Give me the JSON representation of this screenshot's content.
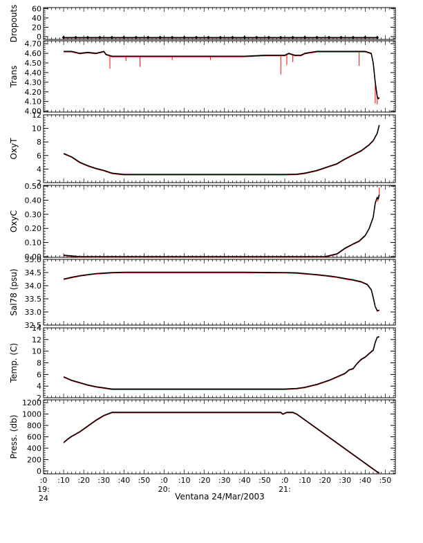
{
  "xlabel": "Ventana 24/Mar/2003",
  "x_ticks": [
    {
      "minute": 0,
      "label": ":0",
      "sub1": "19:",
      "sub2": "24"
    },
    {
      "minute": 10,
      "label": ":10"
    },
    {
      "minute": 20,
      "label": ":20"
    },
    {
      "minute": 30,
      "label": ":30"
    },
    {
      "minute": 40,
      "label": ":40"
    },
    {
      "minute": 50,
      "label": ":50"
    },
    {
      "minute": 60,
      "label": ":0",
      "sub1": "20:"
    },
    {
      "minute": 70,
      "label": ":10"
    },
    {
      "minute": 80,
      "label": ":20"
    },
    {
      "minute": 90,
      "label": ":30"
    },
    {
      "minute": 100,
      "label": ":40"
    },
    {
      "minute": 110,
      "label": ":50"
    },
    {
      "minute": 120,
      "label": ":0",
      "sub1": "21:"
    },
    {
      "minute": 130,
      "label": ":10"
    },
    {
      "minute": 140,
      "label": ":20"
    },
    {
      "minute": 150,
      "label": ":30"
    },
    {
      "minute": 160,
      "label": ":40"
    },
    {
      "minute": 170,
      "label": ":50"
    }
  ],
  "colors": {
    "raw": "#ff0000",
    "smoothed": "#000000",
    "axis": "#000000"
  },
  "chart_data": [
    {
      "type": "line",
      "id": "dropouts",
      "ylabel": "Dropouts",
      "ylim": [
        -6,
        62
      ],
      "yticks": [
        0,
        20,
        40,
        60
      ],
      "ytick_labels": [
        "0",
        "20",
        "40",
        "60"
      ],
      "series": [
        {
          "x": [
            10,
            166
          ],
          "y": [
            -2,
            -2
          ]
        }
      ],
      "markers": {
        "from": 10,
        "to": 166,
        "step": 6,
        "y": -2
      }
    },
    {
      "type": "line",
      "id": "trans",
      "ylabel": "Trans",
      "ylim": [
        3.99,
        4.73
      ],
      "yticks": [
        4.0,
        4.1,
        4.2,
        4.3,
        4.4,
        4.5,
        4.6,
        4.7
      ],
      "ytick_labels": [
        "4.00",
        "4.10",
        "4.20",
        "4.30",
        "4.40",
        "4.50",
        "4.60",
        "4.70"
      ],
      "series": [
        {
          "x": [
            10,
            14,
            18,
            22,
            26,
            30,
            31,
            34,
            40,
            60,
            80,
            100,
            110,
            118,
            120,
            122,
            125,
            128,
            130,
            136,
            150,
            160,
            163,
            164,
            165,
            166,
            166.5,
            167
          ],
          "y": [
            4.62,
            4.62,
            4.6,
            4.61,
            4.6,
            4.62,
            4.59,
            4.57,
            4.57,
            4.57,
            4.57,
            4.57,
            4.58,
            4.58,
            4.58,
            4.6,
            4.58,
            4.58,
            4.6,
            4.62,
            4.62,
            4.62,
            4.6,
            4.5,
            4.3,
            4.15,
            4.13,
            4.14
          ]
        }
      ],
      "spikes": [
        {
          "x": 33,
          "y": 4.44
        },
        {
          "x": 48,
          "y": 4.46
        },
        {
          "x": 41,
          "y": 4.52
        },
        {
          "x": 64,
          "y": 4.53
        },
        {
          "x": 83,
          "y": 4.53
        },
        {
          "x": 118,
          "y": 4.38
        },
        {
          "x": 121,
          "y": 4.48
        },
        {
          "x": 124,
          "y": 4.51
        },
        {
          "x": 157,
          "y": 4.47
        },
        {
          "x": 165,
          "y": 4.08
        },
        {
          "x": 166,
          "y": 4.07
        }
      ]
    },
    {
      "type": "line",
      "id": "oxyt",
      "ylabel": "OxyT",
      "ylim": [
        2,
        12
      ],
      "yticks": [
        2,
        4,
        6,
        8,
        10,
        12
      ],
      "ytick_labels": [
        "2",
        "4",
        "6",
        "8",
        "10",
        "12"
      ],
      "series": [
        {
          "x": [
            10,
            14,
            18,
            22,
            26,
            30,
            34,
            40,
            60,
            80,
            100,
            120,
            126,
            130,
            136,
            142,
            146,
            150,
            154,
            158,
            162,
            164,
            166,
            167
          ],
          "y": [
            6.3,
            5.8,
            5.0,
            4.5,
            4.1,
            3.8,
            3.4,
            3.2,
            3.2,
            3.2,
            3.2,
            3.2,
            3.25,
            3.4,
            3.8,
            4.4,
            4.8,
            5.5,
            6.1,
            6.7,
            7.6,
            8.2,
            9.3,
            10.5
          ]
        }
      ]
    },
    {
      "type": "line",
      "id": "oxyc",
      "ylabel": "OxyC",
      "ylim": [
        -0.005,
        0.505
      ],
      "yticks": [
        0.0,
        0.1,
        0.2,
        0.3,
        0.4,
        0.5
      ],
      "ytick_labels": [
        "0.00",
        "0.10",
        "0.20",
        "0.30",
        "0.40",
        "0.50"
      ],
      "series": [
        {
          "x": [
            10,
            18,
            26,
            34,
            40,
            60,
            80,
            100,
            120,
            130,
            140,
            146,
            150,
            154,
            157,
            160,
            162,
            164,
            165,
            166,
            166.5,
            167
          ],
          "y": [
            0.01,
            0.0,
            0.0,
            0.0,
            0.0,
            0.0,
            0.0,
            0.0,
            0.0,
            0.0,
            0.0,
            0.02,
            0.06,
            0.09,
            0.11,
            0.15,
            0.2,
            0.28,
            0.38,
            0.42,
            0.41,
            0.44
          ]
        }
      ],
      "spikes": [
        {
          "x": 167,
          "y": 0.49
        },
        {
          "x": 166.3,
          "y": 0.39
        }
      ]
    },
    {
      "type": "line",
      "id": "sal78",
      "ylabel": "Sal78 (psu)",
      "ylim": [
        32.5,
        35.0
      ],
      "yticks": [
        32.5,
        33.0,
        33.5,
        34.0,
        34.5,
        35.0
      ],
      "ytick_labels": [
        "32.5",
        "33.0",
        "33.5",
        "34.0",
        "34.5",
        "35.0"
      ],
      "series": [
        {
          "x": [
            10,
            14,
            18,
            22,
            26,
            30,
            34,
            40,
            60,
            80,
            100,
            120,
            126,
            130,
            136,
            142,
            146,
            150,
            154,
            158,
            161,
            163,
            164,
            165,
            166,
            167
          ],
          "y": [
            34.25,
            34.32,
            34.38,
            34.42,
            34.46,
            34.48,
            34.5,
            34.51,
            34.51,
            34.51,
            34.51,
            34.5,
            34.49,
            34.46,
            34.42,
            34.37,
            34.33,
            34.27,
            34.22,
            34.15,
            34.05,
            33.85,
            33.55,
            33.2,
            33.05,
            33.07
          ]
        }
      ]
    },
    {
      "type": "line",
      "id": "temp",
      "ylabel": "Temp. (C)",
      "ylim": [
        2,
        14
      ],
      "yticks": [
        2,
        4,
        6,
        8,
        10,
        12,
        14
      ],
      "ytick_labels": [
        "2",
        "4",
        "6",
        "8",
        "10",
        "12",
        "14"
      ],
      "series": [
        {
          "x": [
            10,
            14,
            18,
            22,
            26,
            30,
            34,
            40,
            60,
            80,
            100,
            120,
            126,
            130,
            136,
            142,
            146,
            150,
            152,
            154,
            156,
            158,
            160,
            162,
            164,
            165,
            166,
            167
          ],
          "y": [
            5.6,
            5.0,
            4.6,
            4.2,
            3.9,
            3.7,
            3.5,
            3.5,
            3.5,
            3.5,
            3.5,
            3.5,
            3.6,
            3.8,
            4.3,
            5.0,
            5.6,
            6.2,
            6.8,
            7.0,
            7.9,
            8.6,
            9.0,
            9.6,
            10.2,
            11.5,
            12.4,
            12.5
          ]
        }
      ]
    },
    {
      "type": "line",
      "id": "press",
      "ylabel": "Press. (db)",
      "ylim": [
        -50,
        1250
      ],
      "yticks": [
        0,
        200,
        400,
        600,
        800,
        1000,
        1200
      ],
      "ytick_labels": [
        "0",
        "200",
        "400",
        "600",
        "800",
        "1000",
        "1200"
      ],
      "series": [
        {
          "x": [
            10,
            12,
            14,
            16,
            18,
            22,
            26,
            30,
            34,
            40,
            60,
            80,
            100,
            110,
            118,
            119,
            120,
            121,
            122,
            124,
            126,
            166,
            167
          ],
          "y": [
            500,
            560,
            610,
            650,
            690,
            790,
            890,
            975,
            1030,
            1030,
            1030,
            1030,
            1030,
            1030,
            1030,
            1000,
            1015,
            1030,
            1030,
            1030,
            1000,
            -15,
            -30
          ]
        }
      ]
    }
  ]
}
